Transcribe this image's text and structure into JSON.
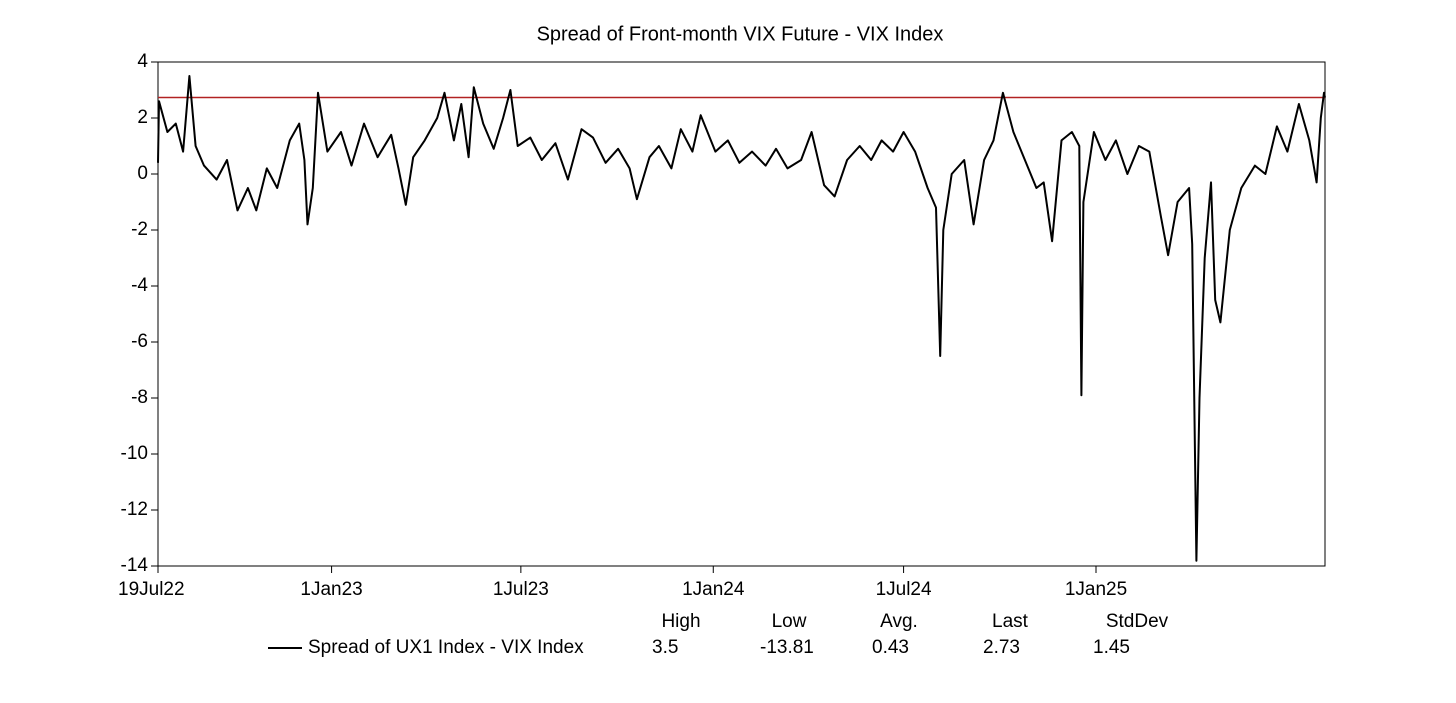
{
  "chart_data": {
    "type": "line",
    "title": "Spread of Front-month VIX Future - VIX Index",
    "x": [
      "2022-07-19",
      "2022-07-20",
      "2022-07-28",
      "2022-08-05",
      "2022-08-12",
      "2022-08-18",
      "2022-08-24",
      "2022-09-01",
      "2022-09-13",
      "2022-09-23",
      "2022-10-03",
      "2022-10-13",
      "2022-10-21",
      "2022-10-31",
      "2022-11-10",
      "2022-11-22",
      "2022-12-01",
      "2022-12-06",
      "2022-12-09",
      "2022-12-14",
      "2022-12-19",
      "2022-12-28",
      "2023-01-10",
      "2023-01-20",
      "2023-02-01",
      "2023-02-14",
      "2023-02-27",
      "2023-03-06",
      "2023-03-13",
      "2023-03-20",
      "2023-03-31",
      "2023-04-12",
      "2023-04-19",
      "2023-04-28",
      "2023-05-05",
      "2023-05-12",
      "2023-05-17",
      "2023-05-26",
      "2023-06-05",
      "2023-06-14",
      "2023-06-21",
      "2023-06-28",
      "2023-07-10",
      "2023-07-21",
      "2023-08-03",
      "2023-08-15",
      "2023-08-28",
      "2023-09-08",
      "2023-09-20",
      "2023-10-02",
      "2023-10-13",
      "2023-10-20",
      "2023-11-01",
      "2023-11-10",
      "2023-11-22",
      "2023-12-01",
      "2023-12-12",
      "2023-12-20",
      "2024-01-03",
      "2024-01-15",
      "2024-01-26",
      "2024-02-07",
      "2024-02-20",
      "2024-03-01",
      "2024-03-12",
      "2024-03-25",
      "2024-04-04",
      "2024-04-16",
      "2024-04-26",
      "2024-05-08",
      "2024-05-20",
      "2024-05-31",
      "2024-06-10",
      "2024-06-21",
      "2024-07-01",
      "2024-07-12",
      "2024-07-24",
      "2024-08-01",
      "2024-08-05",
      "2024-08-08",
      "2024-08-16",
      "2024-08-28",
      "2024-09-06",
      "2024-09-16",
      "2024-09-25",
      "2024-10-04",
      "2024-10-14",
      "2024-10-25",
      "2024-11-05",
      "2024-11-12",
      "2024-11-20",
      "2024-11-29",
      "2024-12-09",
      "2024-12-16",
      "2024-12-18",
      "2024-12-20",
      "2024-12-30",
      "2025-01-10",
      "2025-01-20",
      "2025-01-31",
      "2025-02-11",
      "2025-02-21",
      "2025-03-04",
      "2025-03-11",
      "2025-03-20",
      "2025-03-31",
      "2025-04-03",
      "2025-04-07",
      "2025-04-10",
      "2025-04-15",
      "2025-04-21",
      "2025-04-25",
      "2025-04-30",
      "2025-05-09",
      "2025-05-20",
      "2025-06-02",
      "2025-06-12",
      "2025-06-23",
      "2025-07-03",
      "2025-07-14",
      "2025-07-24",
      "2025-07-31",
      "2025-08-04",
      "2025-08-07",
      "2025-08-08"
    ],
    "series": [
      {
        "name": "Spread of UX1 Index - VIX Index",
        "color": "#000000",
        "values": [
          0.4,
          2.6,
          1.5,
          1.8,
          0.8,
          3.5,
          1.0,
          0.3,
          -0.2,
          0.5,
          -1.3,
          -0.5,
          -1.3,
          0.2,
          -0.5,
          1.2,
          1.8,
          0.5,
          -1.8,
          -0.5,
          2.9,
          0.8,
          1.5,
          0.3,
          1.8,
          0.6,
          1.4,
          0.2,
          -1.1,
          0.6,
          1.2,
          2.0,
          2.9,
          1.2,
          2.5,
          0.6,
          3.1,
          1.8,
          0.9,
          2.0,
          3.0,
          1.0,
          1.3,
          0.5,
          1.1,
          -0.2,
          1.6,
          1.3,
          0.4,
          0.9,
          0.2,
          -0.9,
          0.6,
          1.0,
          0.2,
          1.6,
          0.8,
          2.1,
          0.8,
          1.2,
          0.4,
          0.8,
          0.3,
          0.9,
          0.2,
          0.5,
          1.5,
          -0.4,
          -0.8,
          0.5,
          1.0,
          0.5,
          1.2,
          0.8,
          1.5,
          0.8,
          -0.5,
          -1.2,
          -6.5,
          -2.0,
          0.0,
          0.5,
          -1.8,
          0.5,
          1.2,
          2.9,
          1.5,
          0.5,
          -0.5,
          -0.3,
          -2.4,
          1.2,
          1.5,
          1.0,
          -7.9,
          -1.0,
          1.5,
          0.5,
          1.2,
          0.0,
          1.0,
          0.8,
          -1.5,
          -2.9,
          -1.0,
          -0.5,
          -2.5,
          -13.81,
          -8.0,
          -3.0,
          -0.3,
          -4.5,
          -5.3,
          -2.0,
          -0.5,
          0.3,
          0.0,
          1.7,
          0.8,
          2.5,
          1.2,
          -0.3,
          2.0,
          2.9,
          2.73
        ]
      }
    ],
    "hline": {
      "value": 2.73,
      "color": "#b22222"
    },
    "xlim": [
      "2022-07-19",
      "2025-08-08"
    ],
    "xticks": [
      {
        "value": "2022-07-19",
        "label": "19Jul22"
      },
      {
        "value": "2023-01-01",
        "label": "1Jan23"
      },
      {
        "value": "2023-07-01",
        "label": "1Jul23"
      },
      {
        "value": "2024-01-01",
        "label": "1Jan24"
      },
      {
        "value": "2024-07-01",
        "label": "1Jul24"
      },
      {
        "value": "2025-01-01",
        "label": "1Jan25"
      }
    ],
    "ylim": [
      -14,
      4
    ],
    "yticks": [
      4,
      2,
      0,
      -2,
      -4,
      -6,
      -8,
      -10,
      -12,
      -14
    ],
    "stats": {
      "headers": [
        "High",
        "Low",
        "Avg.",
        "Last",
        "StdDev"
      ],
      "values": [
        3.5,
        -13.81,
        0.43,
        2.73,
        1.45
      ]
    }
  }
}
